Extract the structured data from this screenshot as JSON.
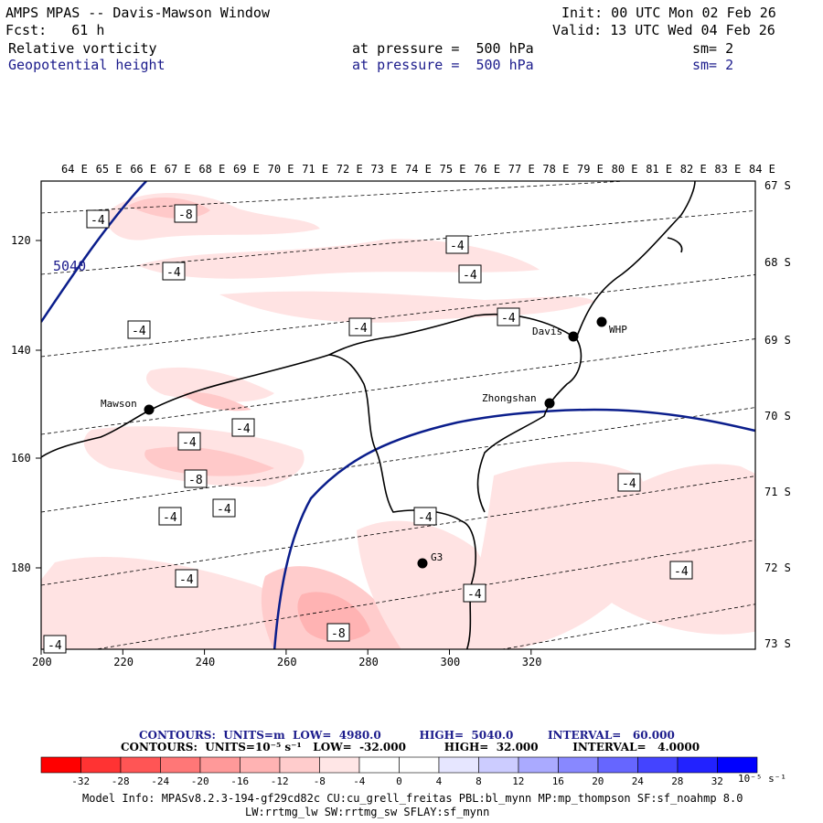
{
  "header": {
    "title": "AMPS MPAS -- Davis-Mawson Window",
    "init": "Init: 00 UTC Mon 02 Feb 26",
    "fcst": "Fcst:   61 h",
    "valid": "Valid: 13 UTC Wed 04 Feb 26",
    "field1": {
      "name": "Relative vorticity",
      "level": "at pressure =  500 hPa",
      "sm": "sm= 2"
    },
    "field2": {
      "name": "Geopotential height",
      "level": "at pressure =  500 hPa",
      "sm": "sm= 2"
    }
  },
  "map": {
    "lon_labels": [
      "64 E",
      "65 E",
      "66 E",
      "67 E",
      "68 E",
      "69 E",
      "70 E",
      "71 E",
      "72 E",
      "73 E",
      "74 E",
      "75 E",
      "76 E",
      "77 E",
      "78 E",
      "79 E",
      "80 E",
      "81 E",
      "82 E",
      "83 E",
      "84 E"
    ],
    "lat_labels": [
      "67 S",
      "68 S",
      "69 S",
      "70 S",
      "71 S",
      "72 S",
      "73 S"
    ],
    "x_ticks": [
      "200",
      "220",
      "240",
      "260",
      "280",
      "300",
      "320"
    ],
    "y_ticks": [
      "120",
      "140",
      "160",
      "180"
    ],
    "stations": [
      {
        "name": "Mawson"
      },
      {
        "name": "Davis"
      },
      {
        "name": "WHP"
      },
      {
        "name": "Zhongshan"
      },
      {
        "name": "G3"
      }
    ],
    "height_label": "5040",
    "vort_labels": [
      "-4",
      "-8",
      "-4",
      "-4",
      "-4",
      "-4",
      "-4",
      "-4",
      "-4",
      "-4",
      "-8",
      "-4",
      "-4",
      "-4",
      "-4",
      "-4",
      "-4",
      "-4",
      "-8",
      "-4"
    ]
  },
  "colorbar": {
    "line1": "CONTOURS:  UNITS=m  LOW=  4980.0          HIGH=  5040.0         INTERVAL=   60.000",
    "line2": "CONTOURS:  UNITS=10⁻⁵ s⁻¹   LOW=  -32.000          HIGH=  32.000         INTERVAL=   4.0000",
    "ticks": [
      "-32",
      "-28",
      "-24",
      "-20",
      "-16",
      "-12",
      "-8",
      "-4",
      "0",
      "4",
      "8",
      "12",
      "16",
      "20",
      "24",
      "28",
      "32"
    ],
    "unit": "10⁻⁵ s⁻¹",
    "colors": [
      "#ff0000",
      "#ff3333",
      "#ff5555",
      "#ff7777",
      "#ff9999",
      "#ffb3b3",
      "#ffcccc",
      "#ffe6e6",
      "#ffffff",
      "#ffffff",
      "#e6e6ff",
      "#ccccff",
      "#aaaaff",
      "#8888ff",
      "#6666ff",
      "#4444ff",
      "#2222ff",
      "#0000ff"
    ]
  },
  "footer": {
    "line1": "Model Info: MPASv8.2.3-194-gf29cd82c CU:cu_grell_freitas PBL:bl_mynn MP:mp_thompson SF:sf_noahmp 8.0",
    "line2": "LW:rrtmg_lw SW:rrtmg_sw SFLAY:sf_mynn"
  }
}
